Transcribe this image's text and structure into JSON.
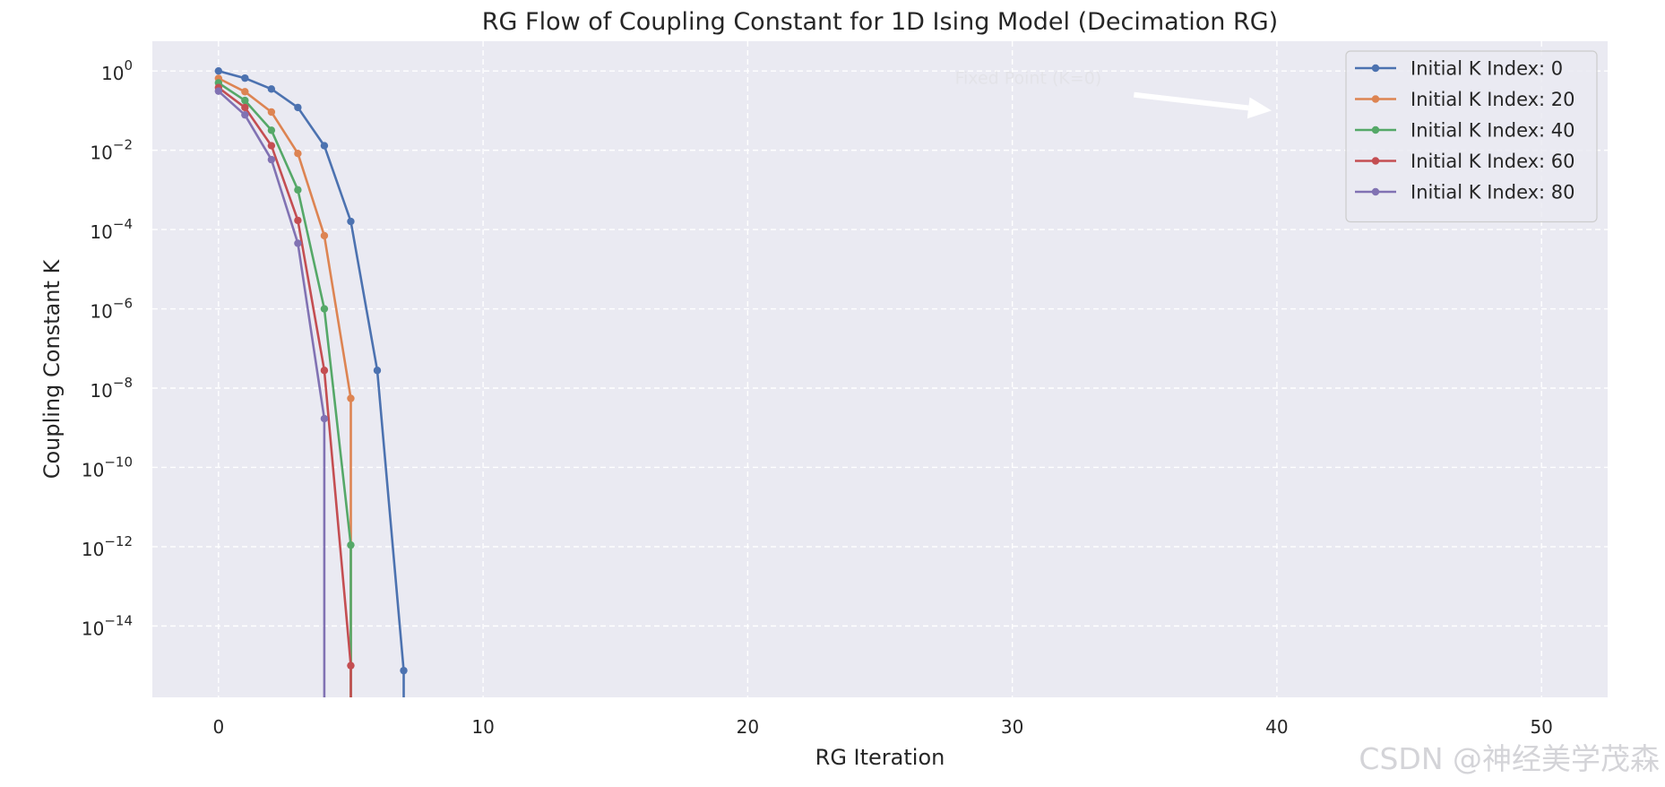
{
  "chart_data": {
    "type": "line",
    "title": "RG Flow of Coupling Constant for 1D Ising Model (Decimation RG)",
    "xlabel": "RG Iteration",
    "ylabel": "Coupling Constant K",
    "xlim": [
      -2.5,
      52.5
    ],
    "ylim_log10": [
      -15.8,
      0.75
    ],
    "yscale": "log",
    "grid": true,
    "legend_position": "top-right",
    "x_ticks": [
      0,
      10,
      20,
      30,
      40,
      50
    ],
    "y_ticks": [
      {
        "exp": 0,
        "label": "0"
      },
      {
        "exp": -2,
        "label": "−2"
      },
      {
        "exp": -4,
        "label": "−4"
      },
      {
        "exp": -6,
        "label": "−6"
      },
      {
        "exp": -8,
        "label": "−8"
      },
      {
        "exp": -10,
        "label": "−10"
      },
      {
        "exp": -12,
        "label": "−12"
      },
      {
        "exp": -14,
        "label": "−14"
      }
    ],
    "series": [
      {
        "name": "Initial K Index: 0",
        "color": "#4c72b0",
        "x": [
          0,
          1,
          2,
          3,
          4,
          5,
          6,
          7
        ],
        "y": [
          1.0,
          0.66,
          0.35,
          0.12,
          0.013,
          0.00016,
          2.8e-08,
          7.5e-16
        ],
        "drop_to_zero_after_last": true
      },
      {
        "name": "Initial K Index: 20",
        "color": "#dd8452",
        "x": [
          0,
          1,
          2,
          3,
          4,
          5
        ],
        "y": [
          0.65,
          0.3,
          0.092,
          0.0083,
          7e-05,
          5.5e-09
        ],
        "drop_to_zero_after_last": true
      },
      {
        "name": "Initial K Index: 40",
        "color": "#55a868",
        "x": [
          0,
          1,
          2,
          3,
          4,
          5
        ],
        "y": [
          0.5,
          0.18,
          0.032,
          0.001,
          1e-06,
          1.1e-12
        ],
        "drop_to_zero_after_last": true
      },
      {
        "name": "Initial K Index: 60",
        "color": "#c44e52",
        "x": [
          0,
          1,
          2,
          3,
          4,
          5
        ],
        "y": [
          0.38,
          0.12,
          0.013,
          0.00017,
          2.8e-08,
          1e-15
        ],
        "drop_to_zero_after_last": true
      },
      {
        "name": "Initial K Index: 80",
        "color": "#8172b3",
        "x": [
          0,
          1,
          2,
          3,
          4
        ],
        "y": [
          0.31,
          0.078,
          0.0058,
          4.5e-05,
          1.7e-09
        ],
        "drop_to_zero_after_last": true
      }
    ],
    "annotation": {
      "text": "Fixed Point (K=0)",
      "x_from": 30.6,
      "y_from": 0.47,
      "x_to": 39.8,
      "y_to": 0.1
    }
  },
  "watermark": "CSDN @神经美学茂森"
}
